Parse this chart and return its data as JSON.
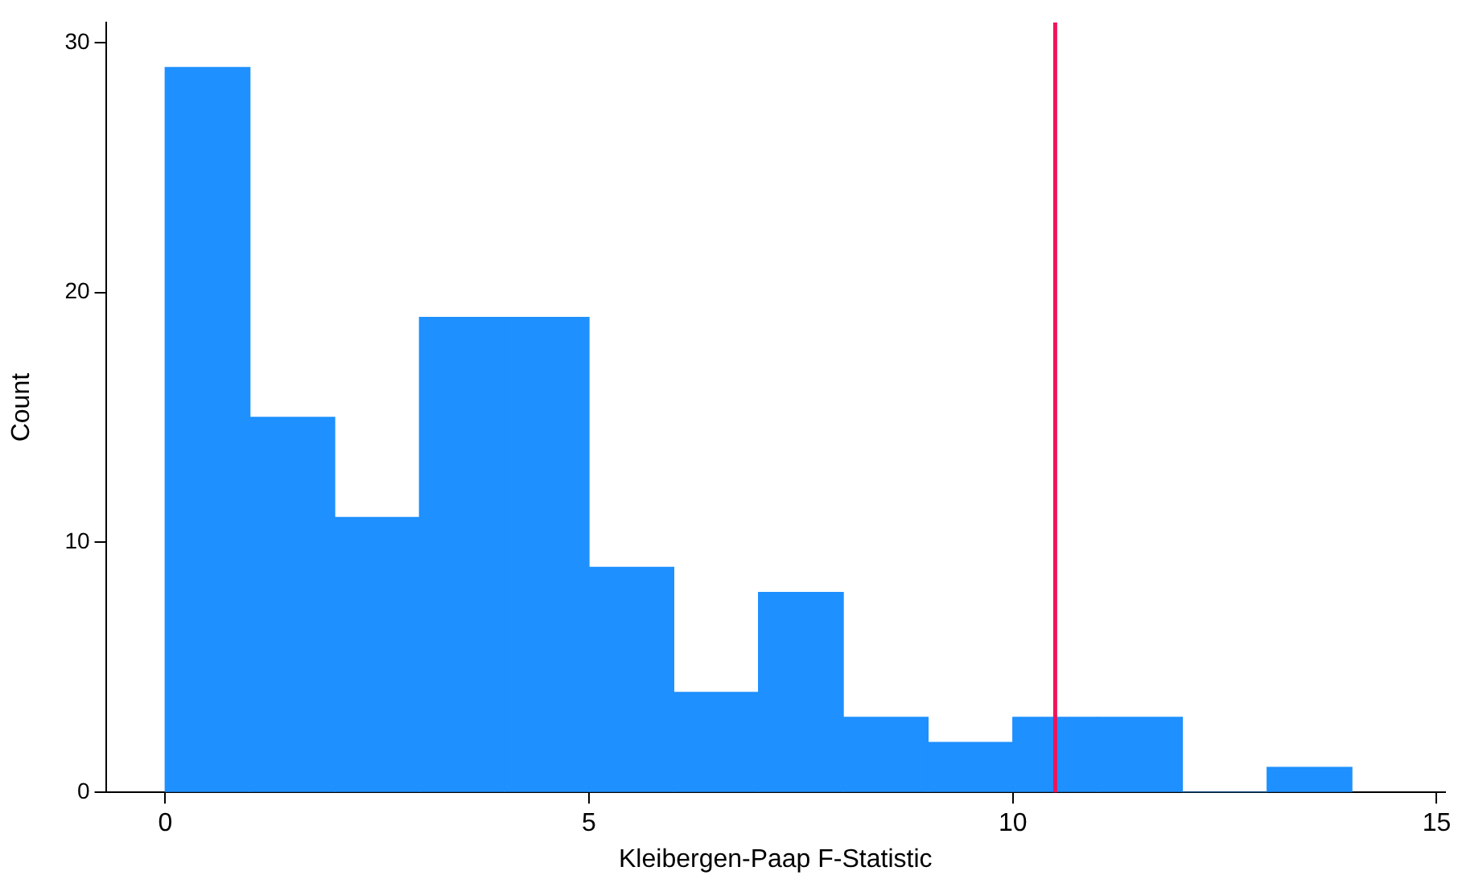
{
  "chart_data": {
    "type": "histogram",
    "xlabel": "Kleibergen-Paap F-Statistic",
    "ylabel": "Count",
    "bins": [
      0,
      1,
      2,
      3,
      4,
      5,
      6,
      7,
      8,
      9,
      10,
      11,
      12,
      13,
      14
    ],
    "values": [
      29,
      15,
      11,
      19,
      19,
      9,
      4,
      8,
      3,
      2,
      3,
      3,
      0,
      1
    ],
    "color": "#1e90ff",
    "xlim": [
      -0.7,
      15.1
    ],
    "xticks": [
      0,
      5,
      10,
      15
    ],
    "ylim": [
      0,
      30.8
    ],
    "yticks": [
      0,
      10,
      20,
      30
    ],
    "ref_lines": [
      {
        "axis": "x",
        "value": 10.5,
        "color": "#f0145a"
      }
    ],
    "grid": false,
    "legend": false
  }
}
